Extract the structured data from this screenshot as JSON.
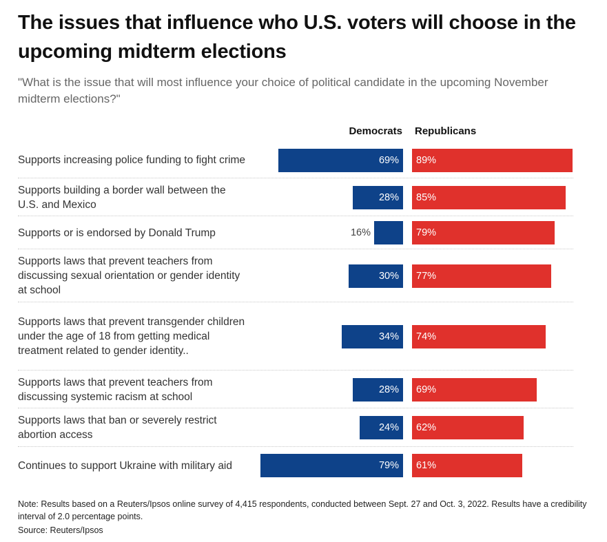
{
  "chart_data": {
    "type": "bar",
    "title": "The issues that influence who U.S. voters will choose in the upcoming midterm elections",
    "subtitle": "\"What is the issue that will most influence your choice of political candidate in the upcoming November midterm elections?\"",
    "series": [
      {
        "name": "Democrats",
        "color": "#0e4289",
        "values": [
          69,
          28,
          16,
          30,
          34,
          28,
          24,
          79
        ]
      },
      {
        "name": "Republicans",
        "color": "#e0312c",
        "values": [
          89,
          85,
          79,
          77,
          74,
          69,
          62,
          61
        ]
      }
    ],
    "categories": [
      "Supports increasing police funding to fight crime",
      "Supports building a border wall between the U.S. and Mexico",
      "Supports or is endorsed by Donald Trump",
      "Supports laws that prevent teachers from discussing sexual orientation or gender identity at school",
      "Supports laws that prevent transgender children under the age of 18 from getting medical treatment related to gender identity..",
      "Supports laws that prevent teachers from discussing systemic racism at school",
      "Supports laws that ban or severely restrict abortion access",
      "Continues to support Ukraine with military aid"
    ],
    "value_suffix": "%",
    "xlim": [
      0,
      100
    ],
    "note": "Note: Results based on a Reuters/Ipsos online survey of 4,415 respondents, conducted between Sept. 27 and Oct. 3, 2022. Results have a credibility interval of 2.0 percentage points.",
    "source": "Source: Reuters/Ipsos"
  }
}
